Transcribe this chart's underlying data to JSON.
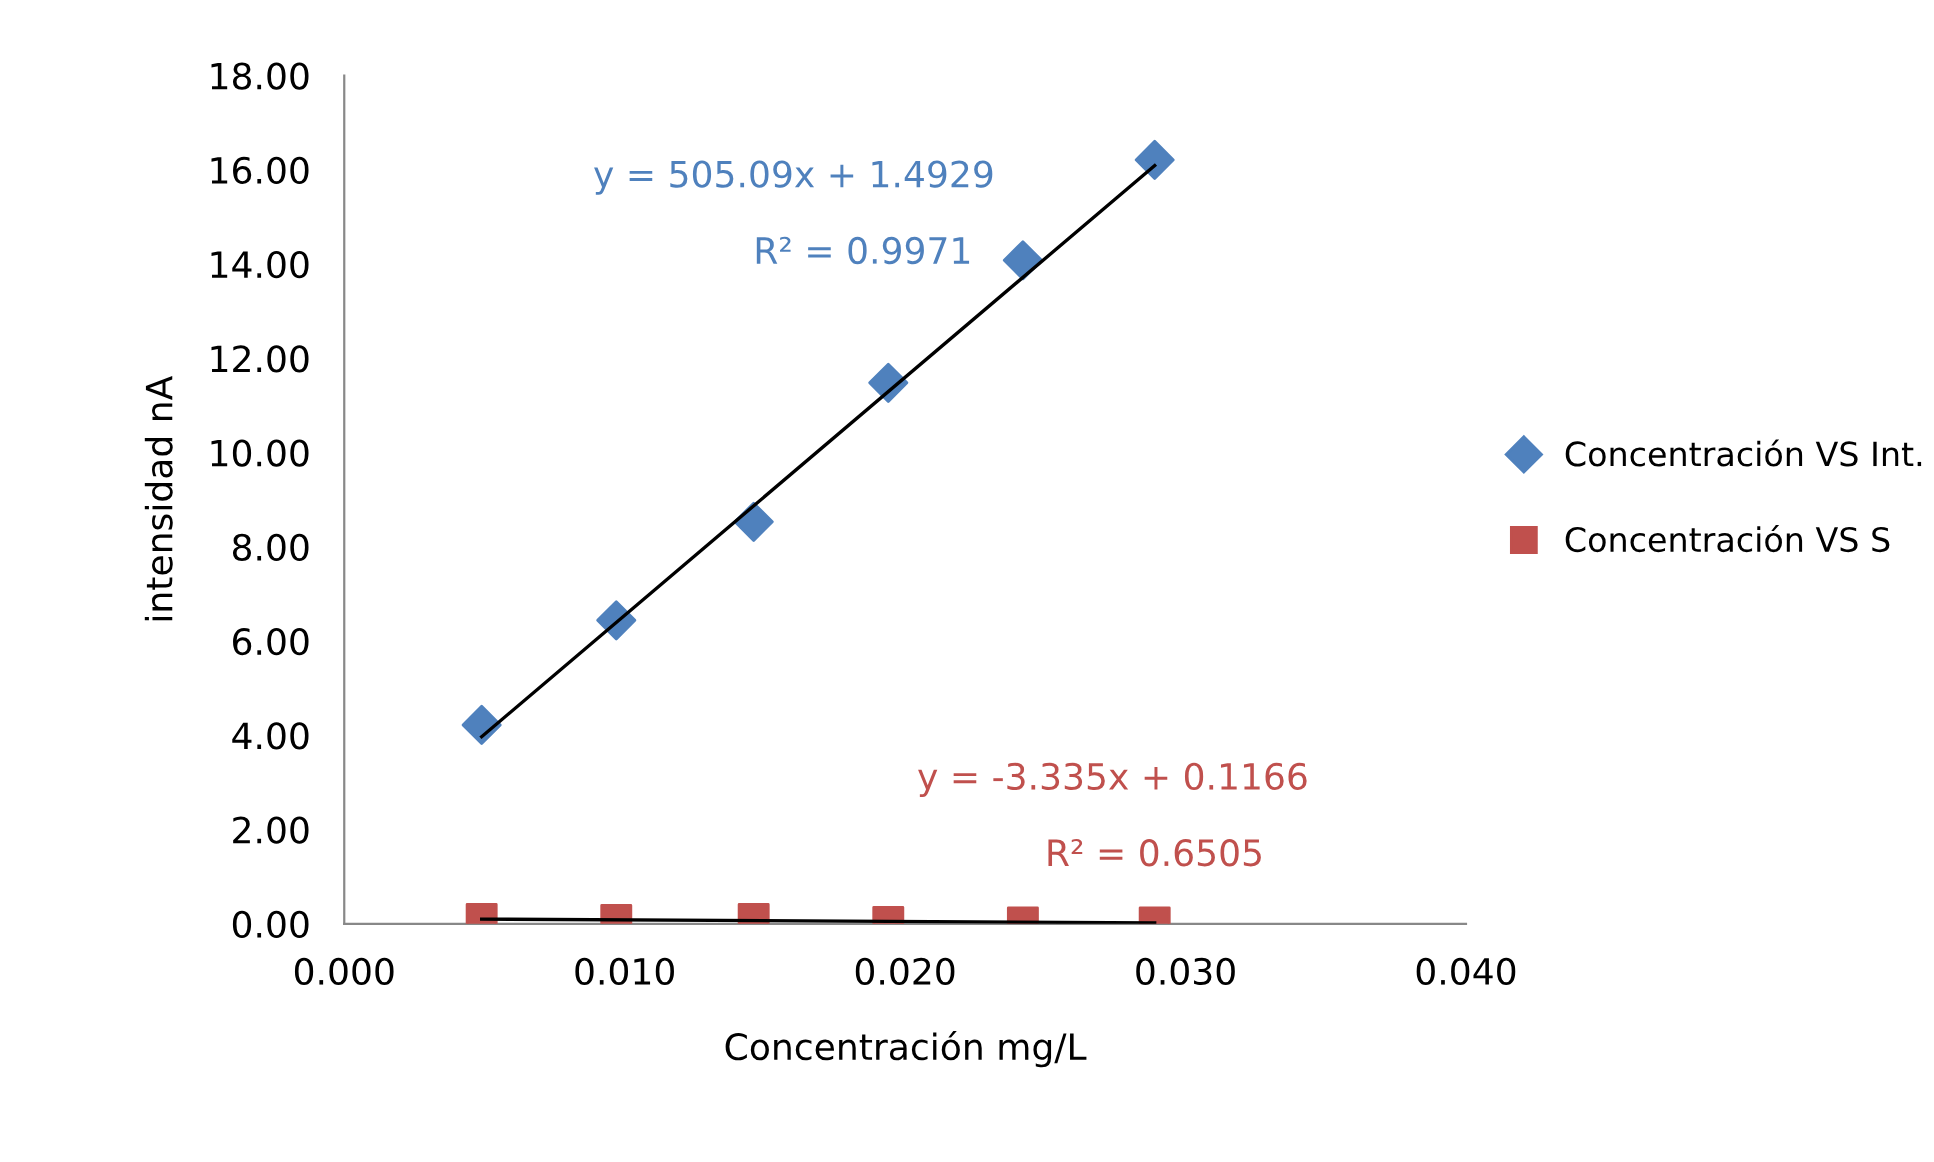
{
  "chart_data": {
    "type": "scatter",
    "xlabel": "Concentración mg/L",
    "ylabel": "intensidad nA",
    "xlim": [
      0,
      0.04
    ],
    "xticks": [
      {
        "value": 0,
        "label": "0.000"
      },
      {
        "value": 0.01,
        "label": "0.010"
      },
      {
        "value": 0.02,
        "label": "0.020"
      },
      {
        "value": 0.03,
        "label": "0.030"
      },
      {
        "value": 0.04,
        "label": "0.040"
      }
    ],
    "ylim": [
      0,
      18
    ],
    "yticks": [
      {
        "value": 0,
        "label": "0.00"
      },
      {
        "value": 2,
        "label": "2.00"
      },
      {
        "value": 4,
        "label": "4.00"
      },
      {
        "value": 6,
        "label": "6.00"
      },
      {
        "value": 8,
        "label": "8.00"
      },
      {
        "value": 10,
        "label": "10.00"
      },
      {
        "value": 12,
        "label": "12.00"
      },
      {
        "value": 14,
        "label": "14.00"
      },
      {
        "value": 16,
        "label": "16.00"
      },
      {
        "value": 18,
        "label": "18.00"
      }
    ],
    "grid": false,
    "legend": "right",
    "series": [
      {
        "name": "Concentración VS Int.",
        "color": "#4f81bd",
        "marker": "diamond",
        "x": [
          0.0049,
          0.0097,
          0.0146,
          0.0194,
          0.0242,
          0.0289
        ],
        "values": [
          4.22,
          6.44,
          8.53,
          11.48,
          14.08,
          16.21
        ]
      },
      {
        "name": "Concentración VS S",
        "color": "#c0504d",
        "marker": "square",
        "x": [
          0.0049,
          0.0097,
          0.0146,
          0.0194,
          0.0242,
          0.0289
        ],
        "values": [
          0.1,
          0.08,
          0.1,
          0.04,
          0.03,
          0.03
        ]
      },
      {
        "type": "line",
        "color": "#000000",
        "x": [
          0.0049,
          0.0289
        ],
        "values": [
          3.97,
          16.09
        ]
      },
      {
        "type": "line",
        "color": "#000000",
        "x": [
          0.0049,
          0.0289
        ],
        "values": [
          0.1,
          0.02
        ]
      }
    ],
    "annotations": [
      "y = 505.09x + 1.4929",
      "R² = 0.9971",
      "y = -3.335x + 0.1166",
      "R² = 0.6505"
    ]
  }
}
